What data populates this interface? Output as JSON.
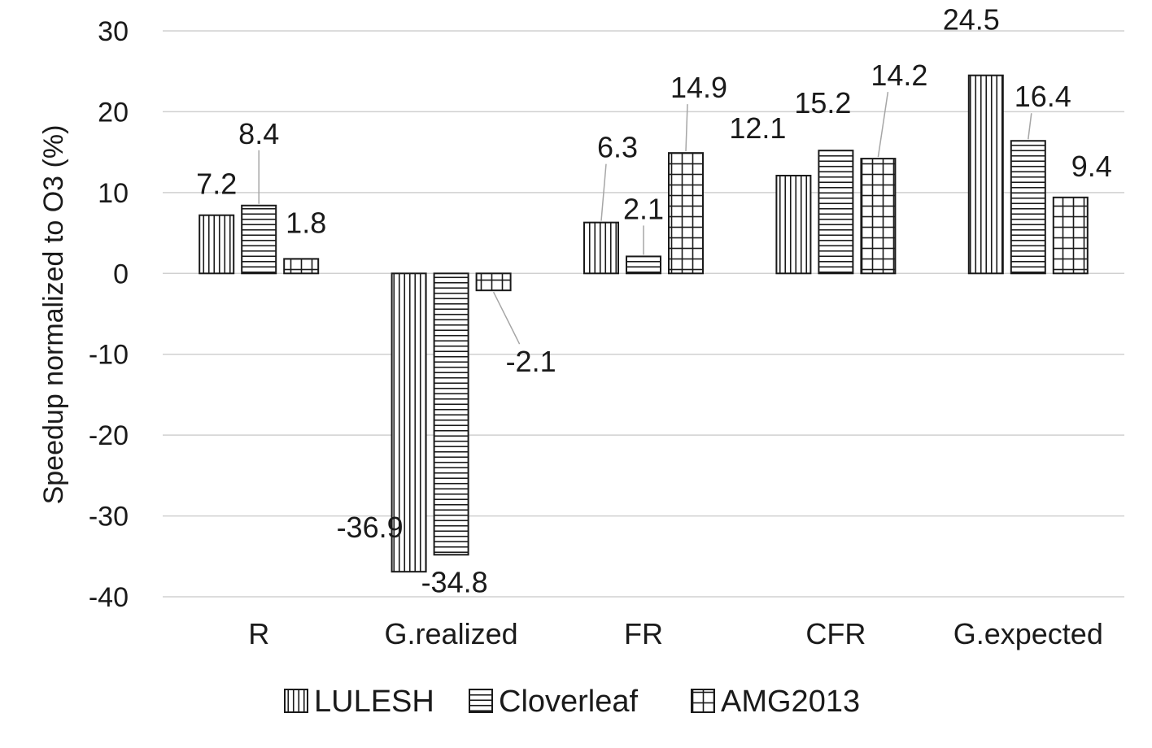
{
  "chart_data": {
    "type": "bar",
    "ylabel": "Speedup normalized to O3 (%)",
    "xlabel": "",
    "ylim": [
      -40,
      30
    ],
    "yticks": [
      30,
      20,
      10,
      0,
      -10,
      -20,
      -30,
      -40
    ],
    "grid": true,
    "legend_position": "bottom",
    "categories": [
      "R",
      "G.realized",
      "FR",
      "CFR",
      "G.expected"
    ],
    "series": [
      {
        "name": "LULESH",
        "pattern": "vertical-lines",
        "values": [
          7.2,
          -36.9,
          6.3,
          12.1,
          24.5
        ]
      },
      {
        "name": "Cloverleaf",
        "pattern": "horizontal-lines",
        "values": [
          8.4,
          -34.8,
          2.1,
          15.2,
          16.4
        ]
      },
      {
        "name": "AMG2013",
        "pattern": "grid",
        "values": [
          1.8,
          -2.1,
          14.9,
          14.2,
          9.4
        ]
      }
    ],
    "data_labels": [
      [
        "7.2",
        "-36.9",
        "6.3",
        "12.1",
        "24.5"
      ],
      [
        "8.4",
        "-34.8",
        "2.1",
        "15.2",
        "16.4"
      ],
      [
        "1.8",
        "-2.1",
        "14.9",
        "14.2",
        "9.4"
      ]
    ]
  },
  "colors": {
    "bar_stroke": "#1a1a1a",
    "gridline": "#d0d0d0",
    "leader_line": "#a6a6a6",
    "background": "#ffffff"
  }
}
